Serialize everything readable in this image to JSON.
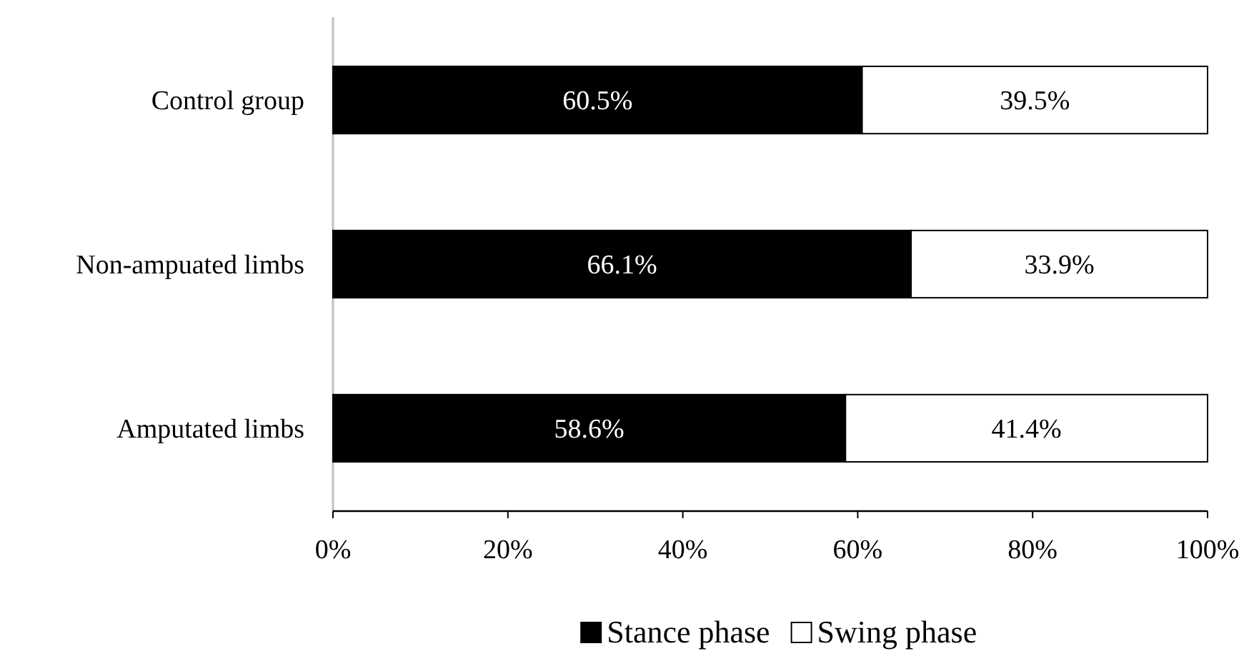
{
  "chart_data": {
    "type": "bar",
    "orientation": "horizontal",
    "stacked": true,
    "categories": [
      "Control group",
      "Non-ampuated limbs",
      "Amputated limbs"
    ],
    "series": [
      {
        "name": "Stance phase",
        "color": "#000000",
        "values": [
          60.5,
          66.1,
          58.6
        ],
        "value_labels": [
          "60.5%",
          "66.1%",
          "58.6%"
        ]
      },
      {
        "name": "Swing phase",
        "color": "#ffffff",
        "values": [
          39.5,
          33.9,
          41.4
        ],
        "value_labels": [
          "39.5%",
          "33.9%",
          "41.4%"
        ]
      }
    ],
    "xlim": [
      0,
      100
    ],
    "xticks": [
      {
        "value": 0,
        "label": "0%"
      },
      {
        "value": 20,
        "label": "20%"
      },
      {
        "value": 40,
        "label": "40%"
      },
      {
        "value": 60,
        "label": "60%"
      },
      {
        "value": 80,
        "label": "80%"
      },
      {
        "value": 100,
        "label": "100%"
      }
    ],
    "legend": "bottom",
    "grid": false
  }
}
